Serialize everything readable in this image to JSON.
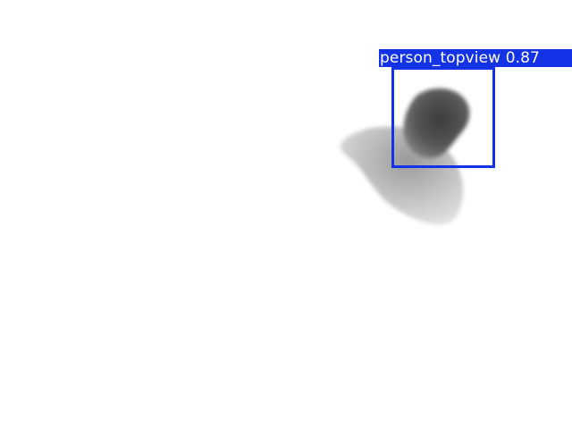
{
  "detection": {
    "label": "person_topview",
    "confidence": "0.87",
    "box_color": "#1432e6",
    "text_color": "#ffffff"
  },
  "scene": {
    "background": "#ffffff",
    "subject": "person-top-view-depth-blob"
  }
}
